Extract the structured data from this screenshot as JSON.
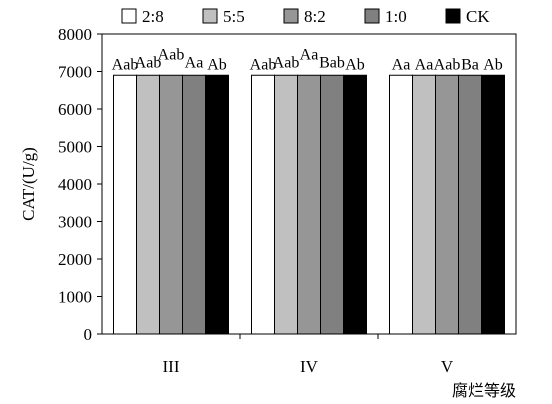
{
  "chart_data": {
    "type": "bar",
    "title": "",
    "xlabel": "腐烂等级",
    "ylabel": "CAT/(U/g)",
    "ylim": [
      0,
      8000
    ],
    "yticks": [
      0,
      1000,
      2000,
      3000,
      4000,
      5000,
      6000,
      7000,
      8000
    ],
    "grid": false,
    "legend_position": "top",
    "categories": [
      "III",
      "IV",
      "V"
    ],
    "series": [
      {
        "name": "2:8",
        "color": "#ffffff",
        "values": [
          6900,
          6900,
          6900
        ],
        "labels": [
          "Aab",
          "Aab",
          "Aa"
        ]
      },
      {
        "name": "5:5",
        "color": "#c0c0c0",
        "values": [
          6900,
          6900,
          6900
        ],
        "labels": [
          "Aab",
          "Aab",
          "Aa"
        ]
      },
      {
        "name": "8:2",
        "color": "#969696",
        "values": [
          6900,
          6900,
          6900
        ],
        "labels": [
          "Aab",
          "Aa",
          "Aab"
        ]
      },
      {
        "name": "1:0",
        "color": "#808080",
        "values": [
          6900,
          6900,
          6900
        ],
        "labels": [
          "Aa",
          "Bab",
          "Ba"
        ]
      },
      {
        "name": "CK",
        "color": "#000000",
        "values": [
          6900,
          6900,
          6900
        ],
        "labels": [
          "Ab",
          "Ab",
          "Ab"
        ]
      }
    ]
  }
}
